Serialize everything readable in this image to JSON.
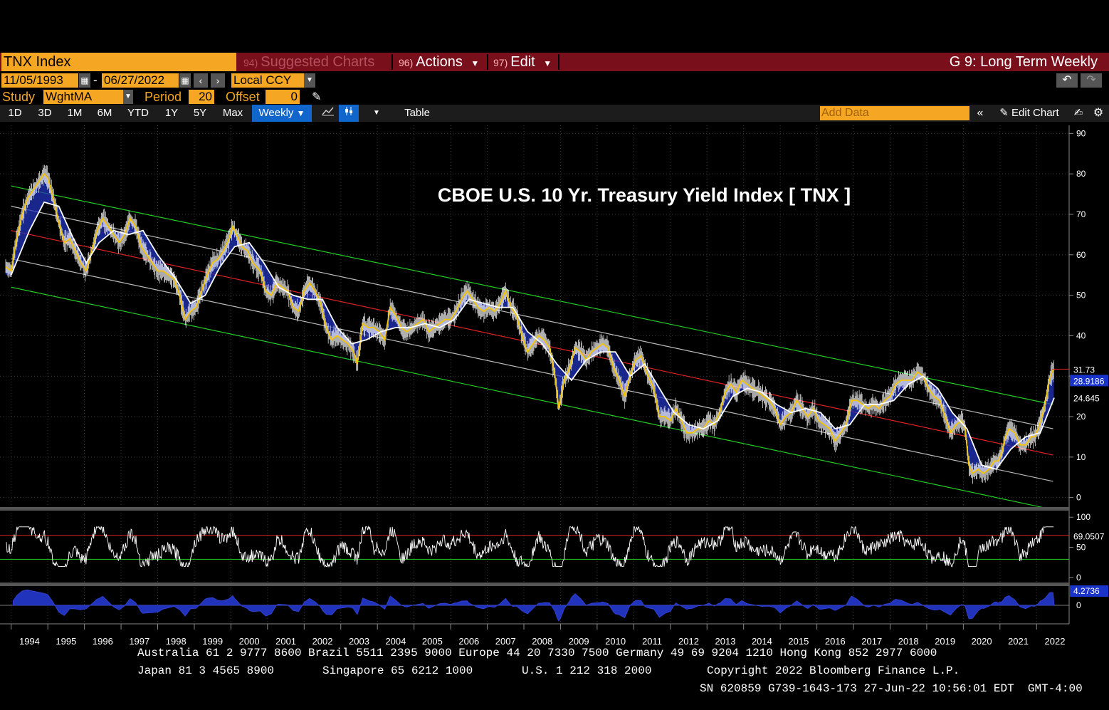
{
  "header": {
    "ticker": "TNX Index",
    "menu": [
      {
        "num": "94)",
        "label": "Suggested Charts"
      },
      {
        "num": "96)",
        "label": "Actions"
      },
      {
        "num": "97)",
        "label": "Edit"
      }
    ],
    "chart_name": "G 9: Long Term Weekly"
  },
  "controls": {
    "start_date": "11/05/1993",
    "dash": "-",
    "end_date": "06/27/2022",
    "currency": "Local CCY",
    "study_label": "Study",
    "study_value": "WghtMA",
    "period_label": "Period",
    "period_value": "20",
    "offset_label": "Offset",
    "offset_value": "0"
  },
  "toolbar": {
    "ranges": [
      "1D",
      "3D",
      "1M",
      "6M",
      "YTD",
      "1Y",
      "5Y",
      "Max"
    ],
    "frequency": "Weekly",
    "table_label": "Table",
    "add_data_placeholder": "Add Data",
    "edit_chart_label": "Edit Chart"
  },
  "chart_data": [
    {
      "type": "line",
      "title": "CBOE U.S. 10 Yr. Treasury Yield Index [ TNX ]",
      "x_ticks": [
        "1994",
        "1995",
        "1996",
        "1997",
        "1998",
        "1999",
        "2000",
        "2001",
        "2002",
        "2003",
        "2004",
        "2005",
        "2006",
        "2007",
        "2008",
        "2009",
        "2010",
        "2011",
        "2012",
        "2013",
        "2014",
        "2015",
        "2016",
        "2017",
        "2018",
        "2019",
        "2020",
        "2021",
        "2022"
      ],
      "y_ticks": [
        0,
        10,
        20,
        30,
        40,
        50,
        60,
        70,
        80,
        90
      ],
      "ylim": [
        -2,
        92
      ],
      "xlim": [
        1993.85,
        2022.5
      ],
      "series": [],
      "price_points": [
        [
          1993.85,
          57
        ],
        [
          1994.0,
          56
        ],
        [
          1994.15,
          64
        ],
        [
          1994.3,
          70
        ],
        [
          1994.45,
          74
        ],
        [
          1994.6,
          76
        ],
        [
          1994.75,
          78
        ],
        [
          1994.9,
          80
        ],
        [
          1995.0,
          79
        ],
        [
          1995.15,
          74
        ],
        [
          1995.3,
          68
        ],
        [
          1995.45,
          63
        ],
        [
          1995.6,
          64
        ],
        [
          1995.75,
          61
        ],
        [
          1995.9,
          58
        ],
        [
          1996.05,
          56
        ],
        [
          1996.2,
          61
        ],
        [
          1996.35,
          66
        ],
        [
          1996.5,
          69
        ],
        [
          1996.65,
          67
        ],
        [
          1996.8,
          65
        ],
        [
          1996.95,
          63
        ],
        [
          1997.1,
          65
        ],
        [
          1997.25,
          69
        ],
        [
          1997.4,
          67
        ],
        [
          1997.55,
          62
        ],
        [
          1997.7,
          60
        ],
        [
          1997.85,
          58
        ],
        [
          1998.0,
          56
        ],
        [
          1998.15,
          56
        ],
        [
          1998.3,
          55
        ],
        [
          1998.45,
          54
        ],
        [
          1998.6,
          50
        ],
        [
          1998.75,
          44
        ],
        [
          1998.9,
          46
        ],
        [
          1999.05,
          47
        ],
        [
          1999.2,
          51
        ],
        [
          1999.35,
          55
        ],
        [
          1999.5,
          58
        ],
        [
          1999.65,
          59
        ],
        [
          1999.8,
          61
        ],
        [
          1999.95,
          64
        ],
        [
          2000.05,
          67
        ],
        [
          2000.15,
          65
        ],
        [
          2000.3,
          62
        ],
        [
          2000.45,
          61
        ],
        [
          2000.6,
          58
        ],
        [
          2000.8,
          56
        ],
        [
          2000.95,
          51
        ],
        [
          2001.1,
          50
        ],
        [
          2001.25,
          53
        ],
        [
          2001.4,
          52
        ],
        [
          2001.55,
          51
        ],
        [
          2001.7,
          47
        ],
        [
          2001.85,
          46
        ],
        [
          2002.0,
          51
        ],
        [
          2002.15,
          53
        ],
        [
          2002.3,
          51
        ],
        [
          2002.45,
          48
        ],
        [
          2002.6,
          42
        ],
        [
          2002.75,
          39
        ],
        [
          2002.9,
          40
        ],
        [
          2003.05,
          39
        ],
        [
          2003.2,
          38
        ],
        [
          2003.35,
          36
        ],
        [
          2003.45,
          33
        ],
        [
          2003.6,
          43
        ],
        [
          2003.75,
          42
        ],
        [
          2003.9,
          42
        ],
        [
          2004.05,
          41
        ],
        [
          2004.2,
          39
        ],
        [
          2004.35,
          47
        ],
        [
          2004.5,
          45
        ],
        [
          2004.65,
          42
        ],
        [
          2004.8,
          41
        ],
        [
          2004.95,
          42
        ],
        [
          2005.1,
          43
        ],
        [
          2005.25,
          44
        ],
        [
          2005.4,
          41
        ],
        [
          2005.55,
          42
        ],
        [
          2005.7,
          43
        ],
        [
          2005.85,
          44
        ],
        [
          2006.0,
          44
        ],
        [
          2006.15,
          46
        ],
        [
          2006.3,
          49
        ],
        [
          2006.45,
          51
        ],
        [
          2006.6,
          49
        ],
        [
          2006.75,
          47
        ],
        [
          2006.9,
          46
        ],
        [
          2007.05,
          47
        ],
        [
          2007.2,
          46
        ],
        [
          2007.35,
          48
        ],
        [
          2007.5,
          51
        ],
        [
          2007.65,
          47
        ],
        [
          2007.8,
          45
        ],
        [
          2007.95,
          40
        ],
        [
          2008.1,
          36
        ],
        [
          2008.25,
          38
        ],
        [
          2008.4,
          40
        ],
        [
          2008.55,
          39
        ],
        [
          2008.7,
          37
        ],
        [
          2008.85,
          30
        ],
        [
          2008.95,
          22
        ],
        [
          2009.1,
          29
        ],
        [
          2009.25,
          32
        ],
        [
          2009.4,
          37
        ],
        [
          2009.55,
          36
        ],
        [
          2009.7,
          34
        ],
        [
          2009.85,
          36
        ],
        [
          2010.0,
          37
        ],
        [
          2010.15,
          38
        ],
        [
          2010.3,
          37
        ],
        [
          2010.45,
          32
        ],
        [
          2010.6,
          29
        ],
        [
          2010.75,
          25
        ],
        [
          2010.9,
          30
        ],
        [
          2011.05,
          34
        ],
        [
          2011.2,
          35
        ],
        [
          2011.35,
          31
        ],
        [
          2011.55,
          27
        ],
        [
          2011.7,
          20
        ],
        [
          2011.85,
          20
        ],
        [
          2012.0,
          19
        ],
        [
          2012.15,
          22
        ],
        [
          2012.3,
          19
        ],
        [
          2012.45,
          16
        ],
        [
          2012.6,
          16
        ],
        [
          2012.75,
          17
        ],
        [
          2012.9,
          17
        ],
        [
          2013.05,
          19
        ],
        [
          2013.2,
          18
        ],
        [
          2013.35,
          21
        ],
        [
          2013.5,
          26
        ],
        [
          2013.65,
          28
        ],
        [
          2013.8,
          26
        ],
        [
          2013.95,
          29
        ],
        [
          2014.1,
          28
        ],
        [
          2014.25,
          27
        ],
        [
          2014.4,
          26
        ],
        [
          2014.55,
          25
        ],
        [
          2014.7,
          24
        ],
        [
          2014.85,
          22
        ],
        [
          2015.0,
          18
        ],
        [
          2015.15,
          20
        ],
        [
          2015.3,
          21
        ],
        [
          2015.45,
          24
        ],
        [
          2015.6,
          22
        ],
        [
          2015.75,
          20
        ],
        [
          2015.9,
          22
        ],
        [
          2016.05,
          19
        ],
        [
          2016.2,
          18
        ],
        [
          2016.35,
          17
        ],
        [
          2016.5,
          14
        ],
        [
          2016.65,
          16
        ],
        [
          2016.8,
          18
        ],
        [
          2016.95,
          24
        ],
        [
          2017.1,
          24
        ],
        [
          2017.25,
          23
        ],
        [
          2017.4,
          22
        ],
        [
          2017.55,
          23
        ],
        [
          2017.7,
          22
        ],
        [
          2017.85,
          24
        ],
        [
          2018.0,
          25
        ],
        [
          2018.15,
          28
        ],
        [
          2018.3,
          29
        ],
        [
          2018.45,
          29
        ],
        [
          2018.6,
          29
        ],
        [
          2018.75,
          31
        ],
        [
          2018.9,
          30
        ],
        [
          2019.05,
          27
        ],
        [
          2019.2,
          25
        ],
        [
          2019.35,
          24
        ],
        [
          2019.5,
          20
        ],
        [
          2019.65,
          16
        ],
        [
          2019.8,
          18
        ],
        [
          2019.95,
          19
        ],
        [
          2020.05,
          17
        ],
        [
          2020.15,
          8
        ],
        [
          2020.25,
          6
        ],
        [
          2020.4,
          7
        ],
        [
          2020.55,
          6
        ],
        [
          2020.7,
          7
        ],
        [
          2020.85,
          9
        ],
        [
          2020.95,
          9
        ],
        [
          2021.05,
          11
        ],
        [
          2021.15,
          15
        ],
        [
          2021.25,
          17
        ],
        [
          2021.4,
          16
        ],
        [
          2021.55,
          13
        ],
        [
          2021.7,
          13
        ],
        [
          2021.85,
          15
        ],
        [
          2021.95,
          15
        ],
        [
          2022.05,
          17
        ],
        [
          2022.15,
          20
        ],
        [
          2022.25,
          24
        ],
        [
          2022.35,
          29
        ],
        [
          2022.42,
          31
        ],
        [
          2022.48,
          31.73
        ]
      ],
      "moving_average_points": [
        [
          1994.0,
          55
        ],
        [
          1994.5,
          66
        ],
        [
          1994.9,
          73
        ],
        [
          1995.3,
          72
        ],
        [
          1995.7,
          64
        ],
        [
          1996.05,
          58
        ],
        [
          1996.4,
          63
        ],
        [
          1996.8,
          66
        ],
        [
          1997.2,
          65
        ],
        [
          1997.6,
          66
        ],
        [
          1998.0,
          60
        ],
        [
          1998.5,
          54
        ],
        [
          1998.9,
          48
        ],
        [
          1999.3,
          50
        ],
        [
          1999.7,
          57
        ],
        [
          2000.1,
          62
        ],
        [
          2000.5,
          63
        ],
        [
          2000.9,
          58
        ],
        [
          2001.3,
          52
        ],
        [
          2001.7,
          50
        ],
        [
          2002.1,
          49
        ],
        [
          2002.5,
          49
        ],
        [
          2002.9,
          42
        ],
        [
          2003.3,
          38
        ],
        [
          2003.7,
          39
        ],
        [
          2004.1,
          41
        ],
        [
          2004.5,
          42
        ],
        [
          2004.9,
          42
        ],
        [
          2005.3,
          43
        ],
        [
          2005.7,
          42
        ],
        [
          2006.1,
          44
        ],
        [
          2006.5,
          49
        ],
        [
          2006.9,
          48
        ],
        [
          2007.3,
          47
        ],
        [
          2007.7,
          47
        ],
        [
          2008.1,
          41
        ],
        [
          2008.5,
          38
        ],
        [
          2008.9,
          33
        ],
        [
          2009.3,
          29
        ],
        [
          2009.7,
          34
        ],
        [
          2010.1,
          36
        ],
        [
          2010.5,
          36
        ],
        [
          2010.9,
          30
        ],
        [
          2011.3,
          33
        ],
        [
          2011.7,
          27
        ],
        [
          2012.1,
          21
        ],
        [
          2012.5,
          18
        ],
        [
          2012.9,
          17
        ],
        [
          2013.3,
          19
        ],
        [
          2013.7,
          25
        ],
        [
          2014.1,
          27
        ],
        [
          2014.5,
          26
        ],
        [
          2014.9,
          23
        ],
        [
          2015.3,
          21
        ],
        [
          2015.7,
          22
        ],
        [
          2016.1,
          21
        ],
        [
          2016.5,
          17
        ],
        [
          2016.9,
          18
        ],
        [
          2017.3,
          23
        ],
        [
          2017.7,
          23
        ],
        [
          2018.1,
          24
        ],
        [
          2018.5,
          28
        ],
        [
          2018.9,
          30
        ],
        [
          2019.3,
          27
        ],
        [
          2019.7,
          21
        ],
        [
          2020.1,
          17
        ],
        [
          2020.5,
          8
        ],
        [
          2020.9,
          7
        ],
        [
          2021.3,
          12
        ],
        [
          2021.7,
          15
        ],
        [
          2022.1,
          16
        ],
        [
          2022.48,
          24.645
        ]
      ],
      "channel": {
        "start": 1994.0,
        "end": 2022.45,
        "upper_green": [
          77,
          23
        ],
        "upper_grey": [
          72,
          17
        ],
        "center_red": [
          66,
          10.5
        ],
        "lower_grey": [
          59,
          4
        ],
        "lower_green": [
          52,
          -3
        ]
      },
      "value_labels": [
        {
          "label": "31.73",
          "value": 31.73
        },
        {
          "label": "28.9186",
          "value": 28.9186
        },
        {
          "label": "24.645",
          "value": 24.645
        }
      ]
    },
    {
      "type": "line",
      "name": "oscillator",
      "y_ticks": [
        0,
        50,
        100
      ],
      "ylim": [
        -5,
        105
      ],
      "upper_line": 70,
      "lower_line": 30,
      "last_value": "69.0507"
    },
    {
      "type": "area",
      "name": "momentum",
      "y_ticks": [
        0
      ],
      "last_value": "4.2736"
    }
  ],
  "footer": {
    "line1": "Australia 61 2 9777 8600 Brazil 5511 2395 9000 Europe 44 20 7330 7500 Germany 49 69 9204 1210 Hong Kong 852 2977 6000",
    "line2a": "Japan 81 3 4565 8900",
    "line2b": "Singapore 65 6212 1000",
    "line2c": "U.S. 1 212 318 2000",
    "line2d": "Copyright 2022 Bloomberg Finance L.P.",
    "line3": "SN 620859 G739-1643-173 27-Jun-22 10:56:01 EDT  GMT-4:00"
  },
  "colors": {
    "price": "#f5c400",
    "ma": "#ffffff",
    "fill": "#2233bb",
    "upper_green": "#22cc22",
    "grey": "#bbbbbb",
    "red": "#dd2222",
    "label_box": "#1a33c8"
  }
}
